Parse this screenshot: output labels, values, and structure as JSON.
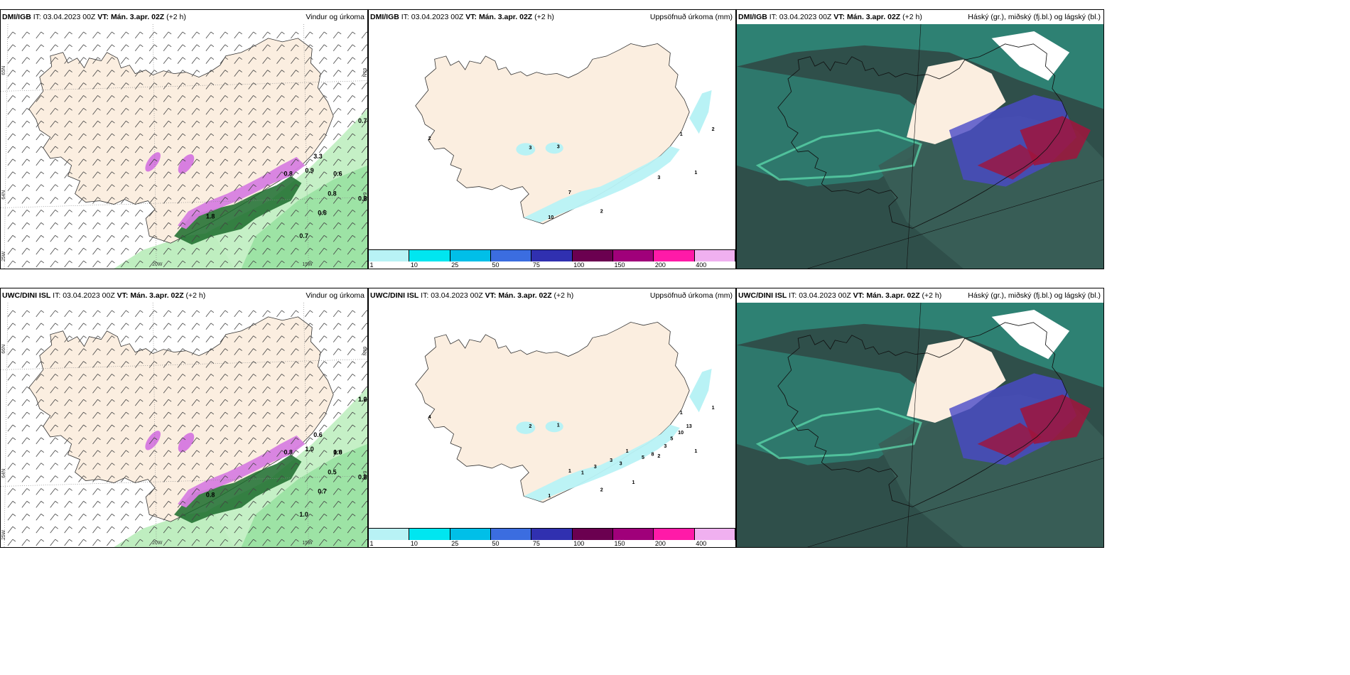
{
  "panels": [
    {
      "model": "DMI/IGB",
      "it_label": "IT:",
      "it_value": "03.04.2023 00Z",
      "vt_label": "VT:",
      "vt_value": "Mán. 3.apr. 02Z",
      "offset": "(+2 h)",
      "title": "Vindur og úrkoma",
      "axis_labels": [
        "65N",
        "64N",
        "25W",
        "20W",
        "15W",
        "65N",
        "64N"
      ],
      "values": [
        "0.7",
        "0.6",
        "0.8",
        "0.8",
        "0.6",
        "0.7",
        "1.8",
        "0.9",
        "0.8",
        "3.3"
      ]
    },
    {
      "model": "DMI/IGB",
      "it_label": "IT:",
      "it_value": "03.04.2023 00Z",
      "vt_label": "VT:",
      "vt_value": "Mán. 3.apr. 02Z",
      "offset": "(+2 h)",
      "title": "Uppsöfnuð úrkoma (mm)",
      "values": [
        "2",
        "3",
        "3",
        "1",
        "7",
        "10",
        "2",
        "3",
        "2",
        "1"
      ]
    },
    {
      "model": "DMI/IGB",
      "it_label": "IT:",
      "it_value": "03.04.2023 00Z",
      "vt_label": "VT:",
      "vt_value": "Mán. 3.apr. 02Z",
      "offset": "(+2 h)",
      "title": "Háský (gr.), miðský (fj.bl.) og lágský (bl.)"
    },
    {
      "model": "UWC/DINI ISL",
      "it_label": "IT:",
      "it_value": "03.04.2023 00Z",
      "vt_label": "VT:",
      "vt_value": "Mán. 3.apr. 02Z",
      "offset": "(+2 h)",
      "title": "Vindur og úrkoma",
      "axis_labels": [
        "66N",
        "64N",
        "25W",
        "20W",
        "15W",
        "66N",
        "64N"
      ],
      "values": [
        "1.0",
        "0.8",
        "0.5",
        "0.8",
        "0.7",
        "1.0",
        "0.8",
        "1.0",
        "0.8",
        "0.6",
        "1.2",
        "1.0"
      ]
    },
    {
      "model": "UWC/DINI ISL",
      "it_label": "IT:",
      "it_value": "03.04.2023 00Z",
      "vt_label": "VT:",
      "vt_value": "Mán. 3.apr. 02Z",
      "offset": "(+2 h)",
      "title": "Uppsöfnuð úrkoma (mm)",
      "values": [
        "4",
        "2",
        "1",
        "1",
        "1",
        "1",
        "2",
        "2",
        "1",
        "1",
        "3",
        "5",
        "8",
        "3",
        "5",
        "10",
        "13",
        "1",
        "3",
        "3",
        "1",
        "1"
      ]
    },
    {
      "model": "UWC/DINI ISL",
      "it_label": "IT:",
      "it_value": "03.04.2023 00Z",
      "vt_label": "VT:",
      "vt_value": "Mán. 3.apr. 02Z",
      "offset": "(+2 h)",
      "title": "Háský (gr.), miðský (fj.bl.) og lágský (bl.)"
    }
  ],
  "legend": {
    "ticks": [
      "1",
      "10",
      "25",
      "50",
      "75",
      "100",
      "150",
      "200",
      "400"
    ],
    "colors": [
      "#b8f2f5",
      "#00e6f0",
      "#00bfe8",
      "#3b6de0",
      "#3030b0",
      "#6b0050",
      "#a0007a",
      "#ff1aa8",
      "#f0b0f0"
    ]
  },
  "colors": {
    "land": "#fbeee0",
    "sea_green_light": "#bfeec0",
    "sea_green_mid": "#7bd88a",
    "dark_green": "#1a6b2a",
    "magenta": "#d77ee0",
    "cloud_teal": "#2e8a7a",
    "cloud_dark": "#2f4f4a",
    "cloud_blue": "#4a4ac8",
    "cloud_red": "#a0143c"
  }
}
